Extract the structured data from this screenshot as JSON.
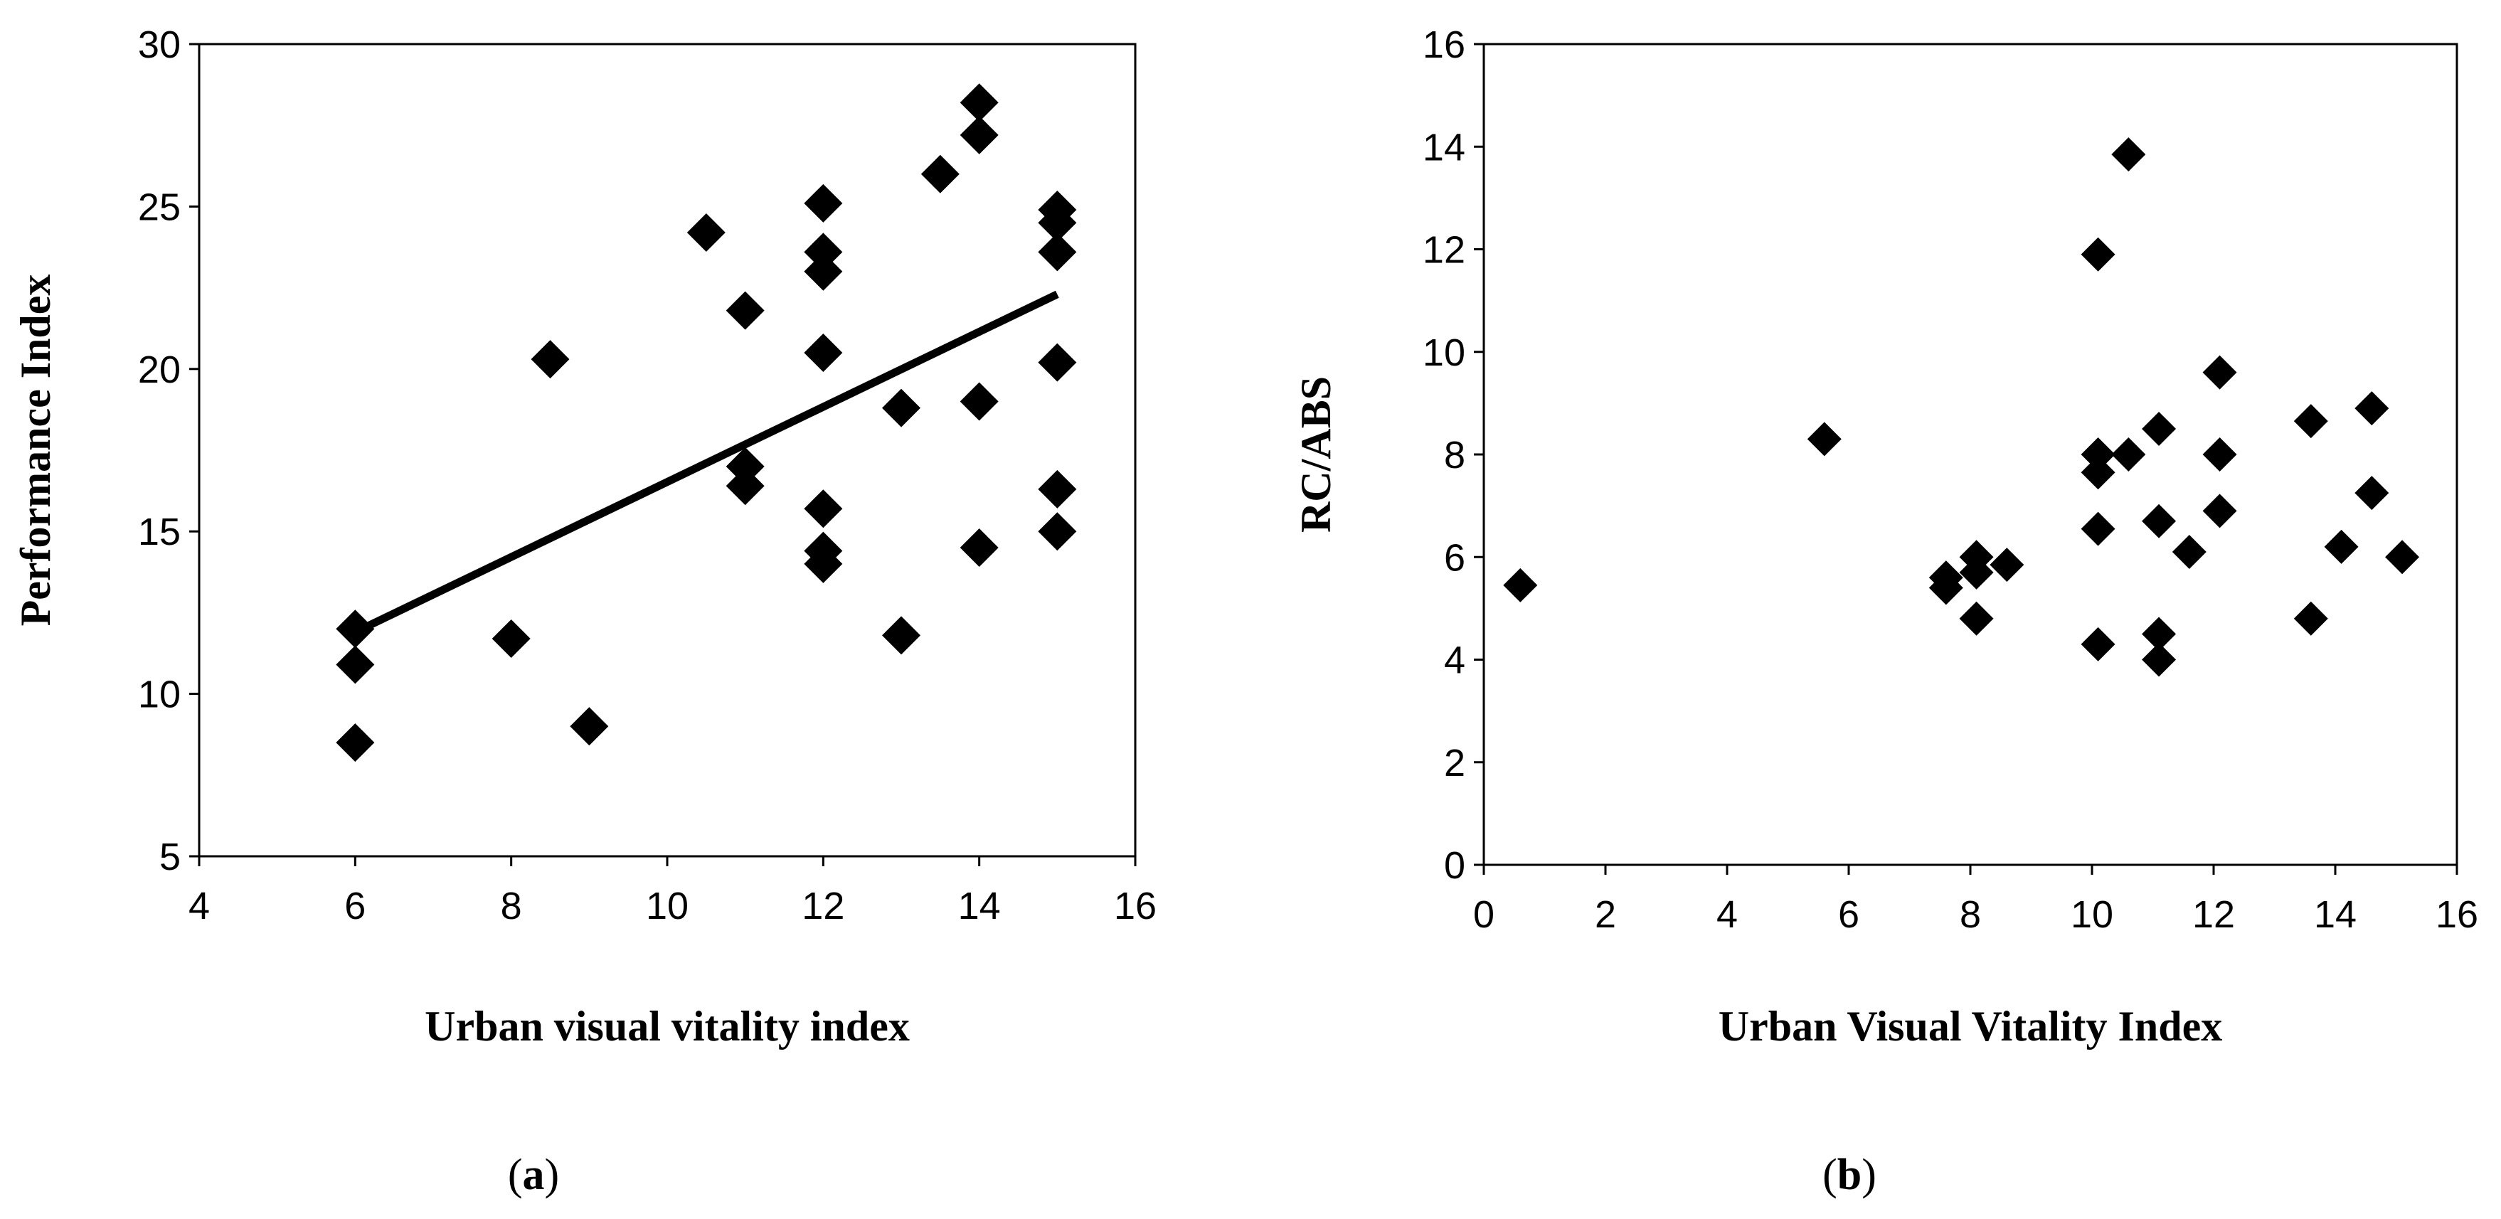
{
  "chart_data": [
    {
      "type": "scatter",
      "panel_label": "a",
      "title": "",
      "xlabel": "Urban visual vitality index",
      "ylabel": "Performance Index",
      "xlim": [
        4,
        16
      ],
      "ylim": [
        5,
        30
      ],
      "xticks": [
        4,
        6,
        8,
        10,
        12,
        14,
        16
      ],
      "yticks": [
        5,
        10,
        15,
        20,
        25,
        30
      ],
      "grid": false,
      "marker": "diamond",
      "series": [
        {
          "name": "observations",
          "points": [
            [
              6,
              12.0
            ],
            [
              6,
              10.9
            ],
            [
              6,
              8.5
            ],
            [
              8,
              11.7
            ],
            [
              8.5,
              20.3
            ],
            [
              9,
              9.0
            ],
            [
              10.5,
              24.2
            ],
            [
              11,
              21.8
            ],
            [
              11,
              17.0
            ],
            [
              11,
              16.4
            ],
            [
              12,
              25.1
            ],
            [
              12,
              23.6
            ],
            [
              12,
              23.0
            ],
            [
              12,
              20.5
            ],
            [
              12,
              15.7
            ],
            [
              12,
              14.4
            ],
            [
              12,
              14.0
            ],
            [
              13,
              18.8
            ],
            [
              13,
              11.8
            ],
            [
              13.5,
              26.0
            ],
            [
              14,
              28.2
            ],
            [
              14,
              27.2
            ],
            [
              14,
              19.0
            ],
            [
              14,
              14.5
            ],
            [
              15,
              24.9
            ],
            [
              15,
              24.5
            ],
            [
              15,
              23.6
            ],
            [
              15,
              20.2
            ],
            [
              15,
              16.3
            ],
            [
              15,
              15.0
            ]
          ]
        }
      ],
      "trendline": {
        "x": [
          6,
          15
        ],
        "y": [
          11.9,
          22.3
        ]
      }
    },
    {
      "type": "scatter",
      "panel_label": "b",
      "title": "",
      "xlabel": "Urban Visual Vitality Index",
      "ylabel": "RC/ABS",
      "xlim": [
        0,
        16
      ],
      "ylim": [
        0,
        16
      ],
      "xticks": [
        0,
        2,
        4,
        6,
        8,
        10,
        12,
        14,
        16
      ],
      "yticks": [
        0,
        2,
        4,
        6,
        8,
        10,
        12,
        14,
        16
      ],
      "grid": false,
      "marker": "diamond",
      "series": [
        {
          "name": "observations",
          "points": [
            [
              0.6,
              5.45
            ],
            [
              5.6,
              8.3
            ],
            [
              7.6,
              5.6
            ],
            [
              7.6,
              5.4
            ],
            [
              8.1,
              6.0
            ],
            [
              8.1,
              5.7
            ],
            [
              8.1,
              4.8
            ],
            [
              8.6,
              5.85
            ],
            [
              10.1,
              11.9
            ],
            [
              10.1,
              8.0
            ],
            [
              10.1,
              7.65
            ],
            [
              10.1,
              6.55
            ],
            [
              10.1,
              4.3
            ],
            [
              10.6,
              13.85
            ],
            [
              10.6,
              8.0
            ],
            [
              11.1,
              8.5
            ],
            [
              11.1,
              6.7
            ],
            [
              11.1,
              4.5
            ],
            [
              11.1,
              4.0
            ],
            [
              11.6,
              6.1
            ],
            [
              12.1,
              9.6
            ],
            [
              12.1,
              8.0
            ],
            [
              12.1,
              6.9
            ],
            [
              13.6,
              8.65
            ],
            [
              13.6,
              4.8
            ],
            [
              14.1,
              6.2
            ],
            [
              14.6,
              8.9
            ],
            [
              14.6,
              7.25
            ],
            [
              15.1,
              6.0
            ]
          ]
        }
      ]
    }
  ]
}
